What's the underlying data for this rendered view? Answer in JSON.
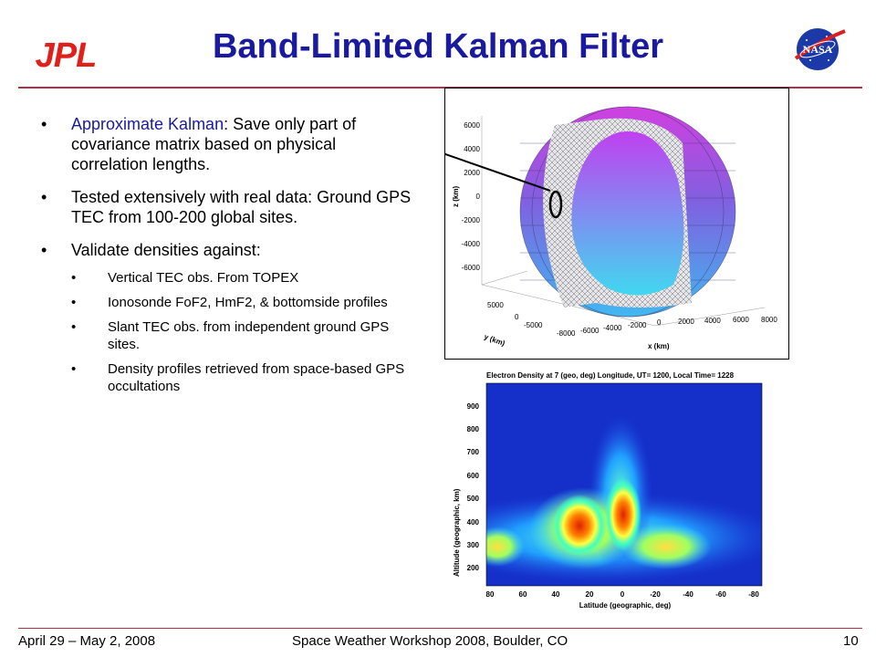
{
  "header": {
    "title": "Band-Limited Kalman Filter",
    "jpl_logo_text": "JPL",
    "nasa_logo_text": "NASA"
  },
  "bullets": {
    "b1_highlight": "Approximate Kalman",
    "b1_rest": ":  Save only part of covariance matrix based on physical correlation lengths.",
    "b2": "Tested extensively with real data: Ground GPS TEC from 100-200 global sites.",
    "b3": "Validate densities against:",
    "sub": [
      "Vertical TEC obs. From TOPEX",
      "Ionosonde FoF2, HmF2, & bottomside profiles",
      "Slant TEC obs. from independent ground GPS sites.",
      "Density profiles retrieved from space-based GPS occultations"
    ]
  },
  "globe_plot": {
    "z_label": "z (km)",
    "y_label": "y (km)",
    "x_label": "x (km)",
    "z_ticks": [
      "6000",
      "4000",
      "2000",
      "0",
      "-2000",
      "-4000",
      "-6000"
    ],
    "y_ticks": [
      "5000",
      "0",
      "-5000"
    ],
    "x_ticks": [
      "-8000",
      "-6000",
      "-4000",
      "-2000",
      "0",
      "2000",
      "4000",
      "6000",
      "8000"
    ]
  },
  "density_plot": {
    "title": "Electron Density at 7 (geo, deg) Longitude, UT= 1200, Local Time=  1228",
    "ylabel": "Altitude (geographic, km)",
    "xlabel": "Latitude (geographic, deg)",
    "y_ticks": [
      "900",
      "800",
      "700",
      "600",
      "500",
      "400",
      "300",
      "200"
    ],
    "x_ticks": [
      "80",
      "60",
      "40",
      "20",
      "0",
      "-20",
      "-40",
      "-60",
      "-80"
    ]
  },
  "footer": {
    "date": "April 29 – May 2, 2008",
    "event": "Space Weather Workshop 2008, Boulder, CO",
    "page": "10"
  }
}
